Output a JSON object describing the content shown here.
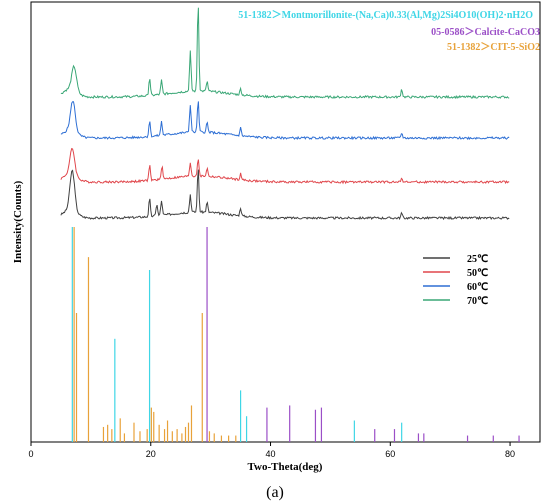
{
  "chart_data": {
    "type": "line",
    "xlabel": "Two-Theta(deg)",
    "ylabel": "Intensity(Counts)",
    "xlim": [
      0,
      85
    ],
    "x_ticks": [
      0,
      20,
      40,
      60,
      80
    ],
    "y_ticks_shown": false,
    "legend_placement": "center-right",
    "series": [
      {
        "name": "25℃",
        "color": "#404040",
        "peaks": [
          [
            6.9,
            40
          ],
          [
            19.8,
            18
          ],
          [
            21.0,
            12
          ],
          [
            21.8,
            15
          ],
          [
            26.6,
            18
          ],
          [
            27.9,
            45
          ],
          [
            29.4,
            10
          ],
          [
            35.0,
            8
          ],
          [
            61.9,
            5
          ]
        ]
      },
      {
        "name": "50℃",
        "color": "#e0474c",
        "peaks": [
          [
            6.9,
            26
          ],
          [
            19.8,
            16
          ],
          [
            21.9,
            14
          ],
          [
            26.6,
            14
          ],
          [
            27.9,
            18
          ],
          [
            29.4,
            8
          ],
          [
            35.0,
            6
          ],
          [
            61.9,
            5
          ]
        ]
      },
      {
        "name": "60℃",
        "color": "#2e6fd4",
        "peaks": [
          [
            7.0,
            30
          ],
          [
            19.8,
            16
          ],
          [
            21.8,
            14
          ],
          [
            26.6,
            28
          ],
          [
            27.9,
            32
          ],
          [
            29.4,
            10
          ],
          [
            35.0,
            8
          ],
          [
            61.9,
            5
          ]
        ]
      },
      {
        "name": "70℃",
        "color": "#3aa776",
        "peaks": [
          [
            7.2,
            24
          ],
          [
            19.8,
            18
          ],
          [
            21.8,
            14
          ],
          [
            26.6,
            40
          ],
          [
            27.9,
            90
          ],
          [
            29.4,
            10
          ],
          [
            35.0,
            6
          ],
          [
            61.9,
            8
          ]
        ]
      }
    ],
    "reference_patterns": [
      {
        "label": "51-1382＞Montmorillonite-(Na,Ca)0.33(Al,Mg)2Si4O10(OH)2·nH2O",
        "color": "#3fd6e6",
        "sticks": [
          [
            6.9,
            100
          ],
          [
            14.0,
            48
          ],
          [
            19.8,
            80
          ],
          [
            35.0,
            24
          ],
          [
            36.0,
            12
          ],
          [
            54.0,
            10
          ],
          [
            61.9,
            9
          ]
        ]
      },
      {
        "label": "05-0586＞Calcite-CaCO3",
        "color": "#9b4fc7",
        "sticks": [
          [
            29.4,
            100
          ],
          [
            39.4,
            16
          ],
          [
            43.2,
            17
          ],
          [
            47.5,
            15
          ],
          [
            48.5,
            16
          ],
          [
            57.4,
            6
          ],
          [
            60.7,
            6
          ],
          [
            64.7,
            4
          ],
          [
            65.6,
            4
          ],
          [
            72.9,
            3
          ],
          [
            77.2,
            3
          ],
          [
            81.5,
            3
          ]
        ]
      },
      {
        "label": "51-1382＞CIT-5-SiO2",
        "color": "#e8a23a",
        "sticks": [
          [
            7.2,
            100
          ],
          [
            7.6,
            60
          ],
          [
            9.6,
            86
          ],
          [
            12.1,
            7
          ],
          [
            12.8,
            8
          ],
          [
            13.5,
            6
          ],
          [
            14.9,
            11
          ],
          [
            15.6,
            4
          ],
          [
            17.2,
            9
          ],
          [
            18.2,
            5
          ],
          [
            19.4,
            6
          ],
          [
            20.1,
            16
          ],
          [
            20.5,
            14
          ],
          [
            21.4,
            8
          ],
          [
            22.3,
            6
          ],
          [
            22.8,
            10
          ],
          [
            23.6,
            5
          ],
          [
            24.4,
            6
          ],
          [
            25.2,
            4
          ],
          [
            25.8,
            7
          ],
          [
            26.3,
            9
          ],
          [
            26.8,
            17
          ],
          [
            28.6,
            60
          ],
          [
            29.8,
            5
          ],
          [
            30.6,
            4
          ],
          [
            31.8,
            3
          ],
          [
            33.0,
            3
          ],
          [
            34.2,
            3
          ]
        ]
      }
    ]
  },
  "caption": "(a)"
}
